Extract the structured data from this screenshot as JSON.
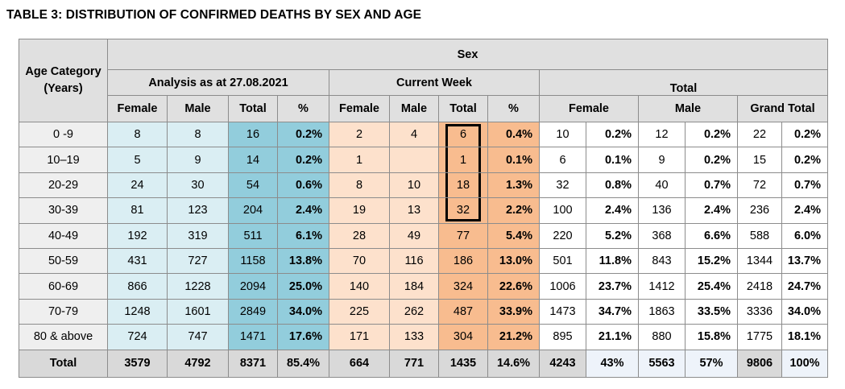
{
  "title": "TABLE 3: DISTRIBUTION OF CONFIRMED DEATHS BY SEX AND AGE",
  "header": {
    "age_category": "Age Category (Years)",
    "sex": "Sex",
    "analysis": "Analysis as at 27.08.2021",
    "current_week": "Current Week",
    "total": "Total",
    "female": "Female",
    "male": "Male",
    "total_col": "Total",
    "percent": "%",
    "grand_total": "Grand Total"
  },
  "rows": [
    {
      "cat": "0 -9",
      "a_f": "8",
      "a_m": "8",
      "a_t": "16",
      "a_p": "0.2%",
      "c_f": "2",
      "c_m": "4",
      "c_t": "6",
      "c_p": "0.4%",
      "t_f": "10",
      "t_fp": "0.2%",
      "t_m": "12",
      "t_mp": "0.2%",
      "g": "22",
      "gp": "0.2%"
    },
    {
      "cat": "10–19",
      "a_f": "5",
      "a_m": "9",
      "a_t": "14",
      "a_p": "0.2%",
      "c_f": "1",
      "c_m": "",
      "c_t": "1",
      "c_p": "0.1%",
      "t_f": "6",
      "t_fp": "0.1%",
      "t_m": "9",
      "t_mp": "0.2%",
      "g": "15",
      "gp": "0.2%"
    },
    {
      "cat": "20-29",
      "a_f": "24",
      "a_m": "30",
      "a_t": "54",
      "a_p": "0.6%",
      "c_f": "8",
      "c_m": "10",
      "c_t": "18",
      "c_p": "1.3%",
      "t_f": "32",
      "t_fp": "0.8%",
      "t_m": "40",
      "t_mp": "0.7%",
      "g": "72",
      "gp": "0.7%"
    },
    {
      "cat": "30-39",
      "a_f": "81",
      "a_m": "123",
      "a_t": "204",
      "a_p": "2.4%",
      "c_f": "19",
      "c_m": "13",
      "c_t": "32",
      "c_p": "2.2%",
      "t_f": "100",
      "t_fp": "2.4%",
      "t_m": "136",
      "t_mp": "2.4%",
      "g": "236",
      "gp": "2.4%"
    },
    {
      "cat": "40-49",
      "a_f": "192",
      "a_m": "319",
      "a_t": "511",
      "a_p": "6.1%",
      "c_f": "28",
      "c_m": "49",
      "c_t": "77",
      "c_p": "5.4%",
      "t_f": "220",
      "t_fp": "5.2%",
      "t_m": "368",
      "t_mp": "6.6%",
      "g": "588",
      "gp": "6.0%"
    },
    {
      "cat": "50-59",
      "a_f": "431",
      "a_m": "727",
      "a_t": "1158",
      "a_p": "13.8%",
      "c_f": "70",
      "c_m": "116",
      "c_t": "186",
      "c_p": "13.0%",
      "t_f": "501",
      "t_fp": "11.8%",
      "t_m": "843",
      "t_mp": "15.2%",
      "g": "1344",
      "gp": "13.7%"
    },
    {
      "cat": "60-69",
      "a_f": "866",
      "a_m": "1228",
      "a_t": "2094",
      "a_p": "25.0%",
      "c_f": "140",
      "c_m": "184",
      "c_t": "324",
      "c_p": "22.6%",
      "t_f": "1006",
      "t_fp": "23.7%",
      "t_m": "1412",
      "t_mp": "25.4%",
      "g": "2418",
      "gp": "24.7%"
    },
    {
      "cat": "70-79",
      "a_f": "1248",
      "a_m": "1601",
      "a_t": "2849",
      "a_p": "34.0%",
      "c_f": "225",
      "c_m": "262",
      "c_t": "487",
      "c_p": "33.9%",
      "t_f": "1473",
      "t_fp": "34.7%",
      "t_m": "1863",
      "t_mp": "33.5%",
      "g": "3336",
      "gp": "34.0%"
    },
    {
      "cat": "80 & above",
      "a_f": "724",
      "a_m": "747",
      "a_t": "1471",
      "a_p": "17.6%",
      "c_f": "171",
      "c_m": "133",
      "c_t": "304",
      "c_p": "21.2%",
      "t_f": "895",
      "t_fp": "21.1%",
      "t_m": "880",
      "t_mp": "15.8%",
      "g": "1775",
      "gp": "18.1%"
    }
  ],
  "totals": {
    "cat": "Total",
    "a_f": "3579",
    "a_m": "4792",
    "a_t": "8371",
    "a_p": "85.4%",
    "c_f": "664",
    "c_m": "771",
    "c_t": "1435",
    "c_p": "14.6%",
    "t_f": "4243",
    "t_fp": "43%",
    "t_m": "5563",
    "t_mp": "57%",
    "g": "9806",
    "gp": "100%"
  },
  "colors": {
    "analysis_light": "#daeef3",
    "analysis_dark": "#92cddc",
    "week_light": "#fde1cc",
    "week_dark": "#f8bc8f",
    "header_gray": "#e0e0e0"
  }
}
